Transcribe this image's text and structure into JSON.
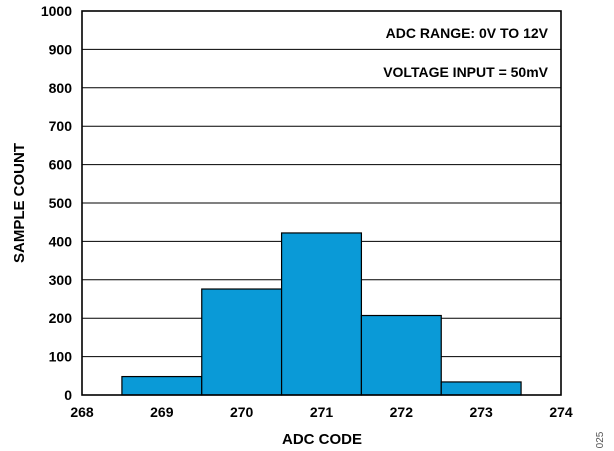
{
  "chart_data": {
    "type": "bar",
    "xlabel": "ADC CODE",
    "ylabel": "SAMPLE COUNT",
    "xlim": [
      268,
      274
    ],
    "ylim": [
      0,
      1000
    ],
    "x_ticks": [
      268,
      269,
      270,
      271,
      272,
      273,
      274
    ],
    "y_ticks": [
      0,
      100,
      200,
      300,
      400,
      500,
      600,
      700,
      800,
      900,
      1000
    ],
    "grid": "horizontal",
    "bar_color": "#0a9ad7",
    "categories": [
      269,
      270,
      271,
      272,
      273
    ],
    "values": [
      48,
      276,
      422,
      207,
      34
    ],
    "annotations": [
      "ADC RANGE: 0V TO 12V",
      "VOLTAGE INPUT = 50mV"
    ]
  },
  "figure_id": "025"
}
